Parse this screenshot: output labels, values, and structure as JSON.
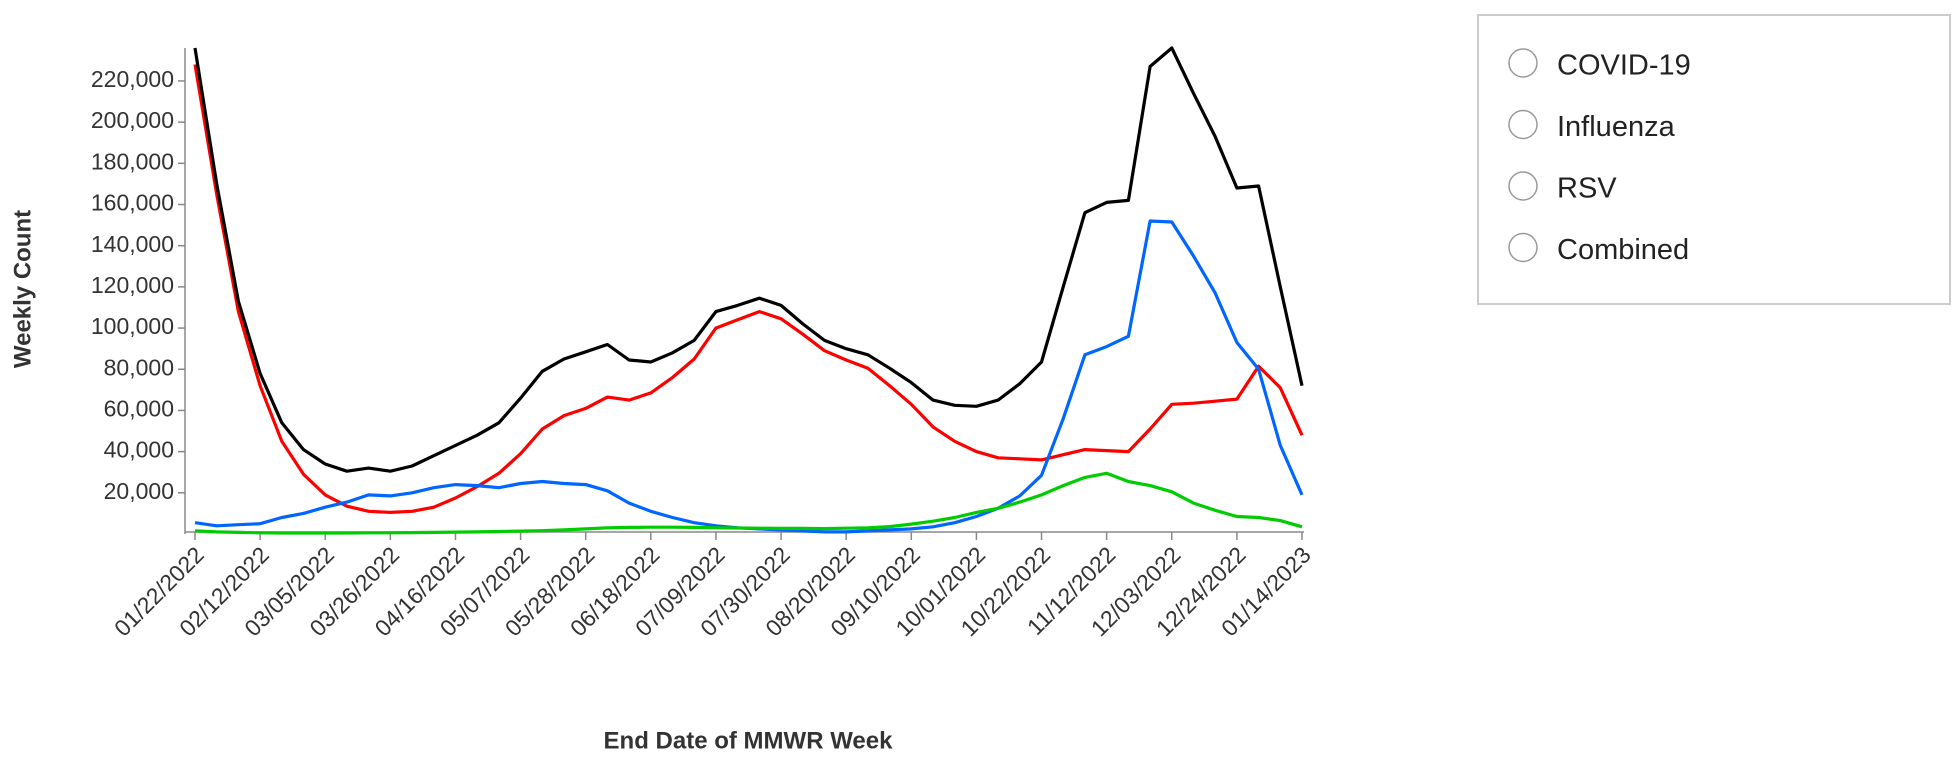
{
  "chart_data": {
    "type": "line",
    "y_label": "Weekly Count",
    "x_label": "End Date of MMWR Week",
    "categories": [
      "01/22/2022",
      null,
      null,
      "02/12/2022",
      null,
      null,
      "03/05/2022",
      null,
      null,
      "03/26/2022",
      null,
      null,
      "04/16/2022",
      null,
      null,
      "05/07/2022",
      null,
      null,
      "05/28/2022",
      null,
      null,
      "06/18/2022",
      null,
      null,
      "07/09/2022",
      null,
      null,
      "07/30/2022",
      null,
      null,
      "08/20/2022",
      null,
      null,
      "09/10/2022",
      null,
      null,
      "10/01/2022",
      null,
      null,
      "10/22/2022",
      null,
      null,
      "11/12/2022",
      null,
      null,
      "12/03/2022",
      null,
      null,
      "12/24/2022",
      null,
      null,
      "01/14/2023"
    ],
    "series": [
      {
        "name": "COVID-19",
        "color": "#ff0000",
        "values": [
          228000,
          165000,
          108000,
          72000,
          45000,
          29000,
          19000,
          13500,
          11000,
          10500,
          11000,
          13000,
          17500,
          23000,
          29500,
          39000,
          51000,
          57500,
          61000,
          66500,
          65000,
          68500,
          76000,
          85000,
          100000,
          104000,
          108000,
          104500,
          97000,
          89000,
          84500,
          80500,
          72000,
          63000,
          52000,
          45000,
          40000,
          37000,
          36500,
          36000,
          38500,
          41000,
          40500,
          40000,
          51000,
          63000,
          63500,
          64500,
          65500,
          81500,
          71000,
          48000
        ]
      },
      {
        "name": "Influenza",
        "color": "#0066ff",
        "values": [
          5500,
          4000,
          4500,
          5000,
          8000,
          10000,
          13000,
          15500,
          19000,
          18500,
          20000,
          22500,
          24000,
          23500,
          22500,
          24500,
          25500,
          24500,
          24000,
          21000,
          15000,
          11000,
          8000,
          5500,
          4000,
          3000,
          2500,
          2000,
          1500,
          1000,
          1000,
          1500,
          2000,
          2500,
          3500,
          5500,
          8500,
          12500,
          18500,
          28500,
          56000,
          87000,
          91000,
          96000,
          152000,
          151500,
          135000,
          117000,
          93000,
          80000,
          43000,
          19000
        ]
      },
      {
        "name": "RSV",
        "color": "#00cc00",
        "values": [
          1500,
          1000,
          800,
          600,
          500,
          500,
          500,
          500,
          600,
          600,
          700,
          800,
          900,
          1000,
          1200,
          1400,
          1600,
          2000,
          2500,
          3000,
          3200,
          3300,
          3300,
          3200,
          3000,
          2900,
          2800,
          2700,
          2700,
          2600,
          2800,
          3000,
          3600,
          4800,
          6200,
          8000,
          10500,
          12500,
          15500,
          19000,
          23500,
          27500,
          29500,
          25500,
          23500,
          20500,
          15000,
          11500,
          8500,
          8000,
          6500,
          3500
        ]
      },
      {
        "name": "Combined",
        "color": "#000000",
        "values": [
          236000,
          170000,
          113000,
          78000,
          54000,
          41000,
          34000,
          30500,
          32000,
          30500,
          33000,
          38000,
          43000,
          48000,
          54000,
          66000,
          79000,
          85000,
          88500,
          92000,
          84500,
          83500,
          88000,
          94000,
          108000,
          111000,
          114500,
          111000,
          102000,
          94000,
          90000,
          87000,
          80500,
          73500,
          65000,
          62500,
          62000,
          65000,
          73000,
          83500,
          120000,
          156000,
          161000,
          162000,
          227000,
          236000,
          214000,
          193000,
          168000,
          169000,
          120000,
          72000
        ]
      }
    ],
    "ylim": [
      0,
      236000
    ],
    "yticks": [
      {
        "value": 20000,
        "label": "20,000"
      },
      {
        "value": 40000,
        "label": "40,000"
      },
      {
        "value": 60000,
        "label": "60,000"
      },
      {
        "value": 80000,
        "label": "80,000"
      },
      {
        "value": 100000,
        "label": "100,000"
      },
      {
        "value": 120000,
        "label": "120,000"
      },
      {
        "value": 140000,
        "label": "140,000"
      },
      {
        "value": 160000,
        "label": "160,000"
      },
      {
        "value": 180000,
        "label": "180,000"
      },
      {
        "value": 200000,
        "label": "200,000"
      },
      {
        "value": 220000,
        "label": "220,000"
      }
    ]
  }
}
